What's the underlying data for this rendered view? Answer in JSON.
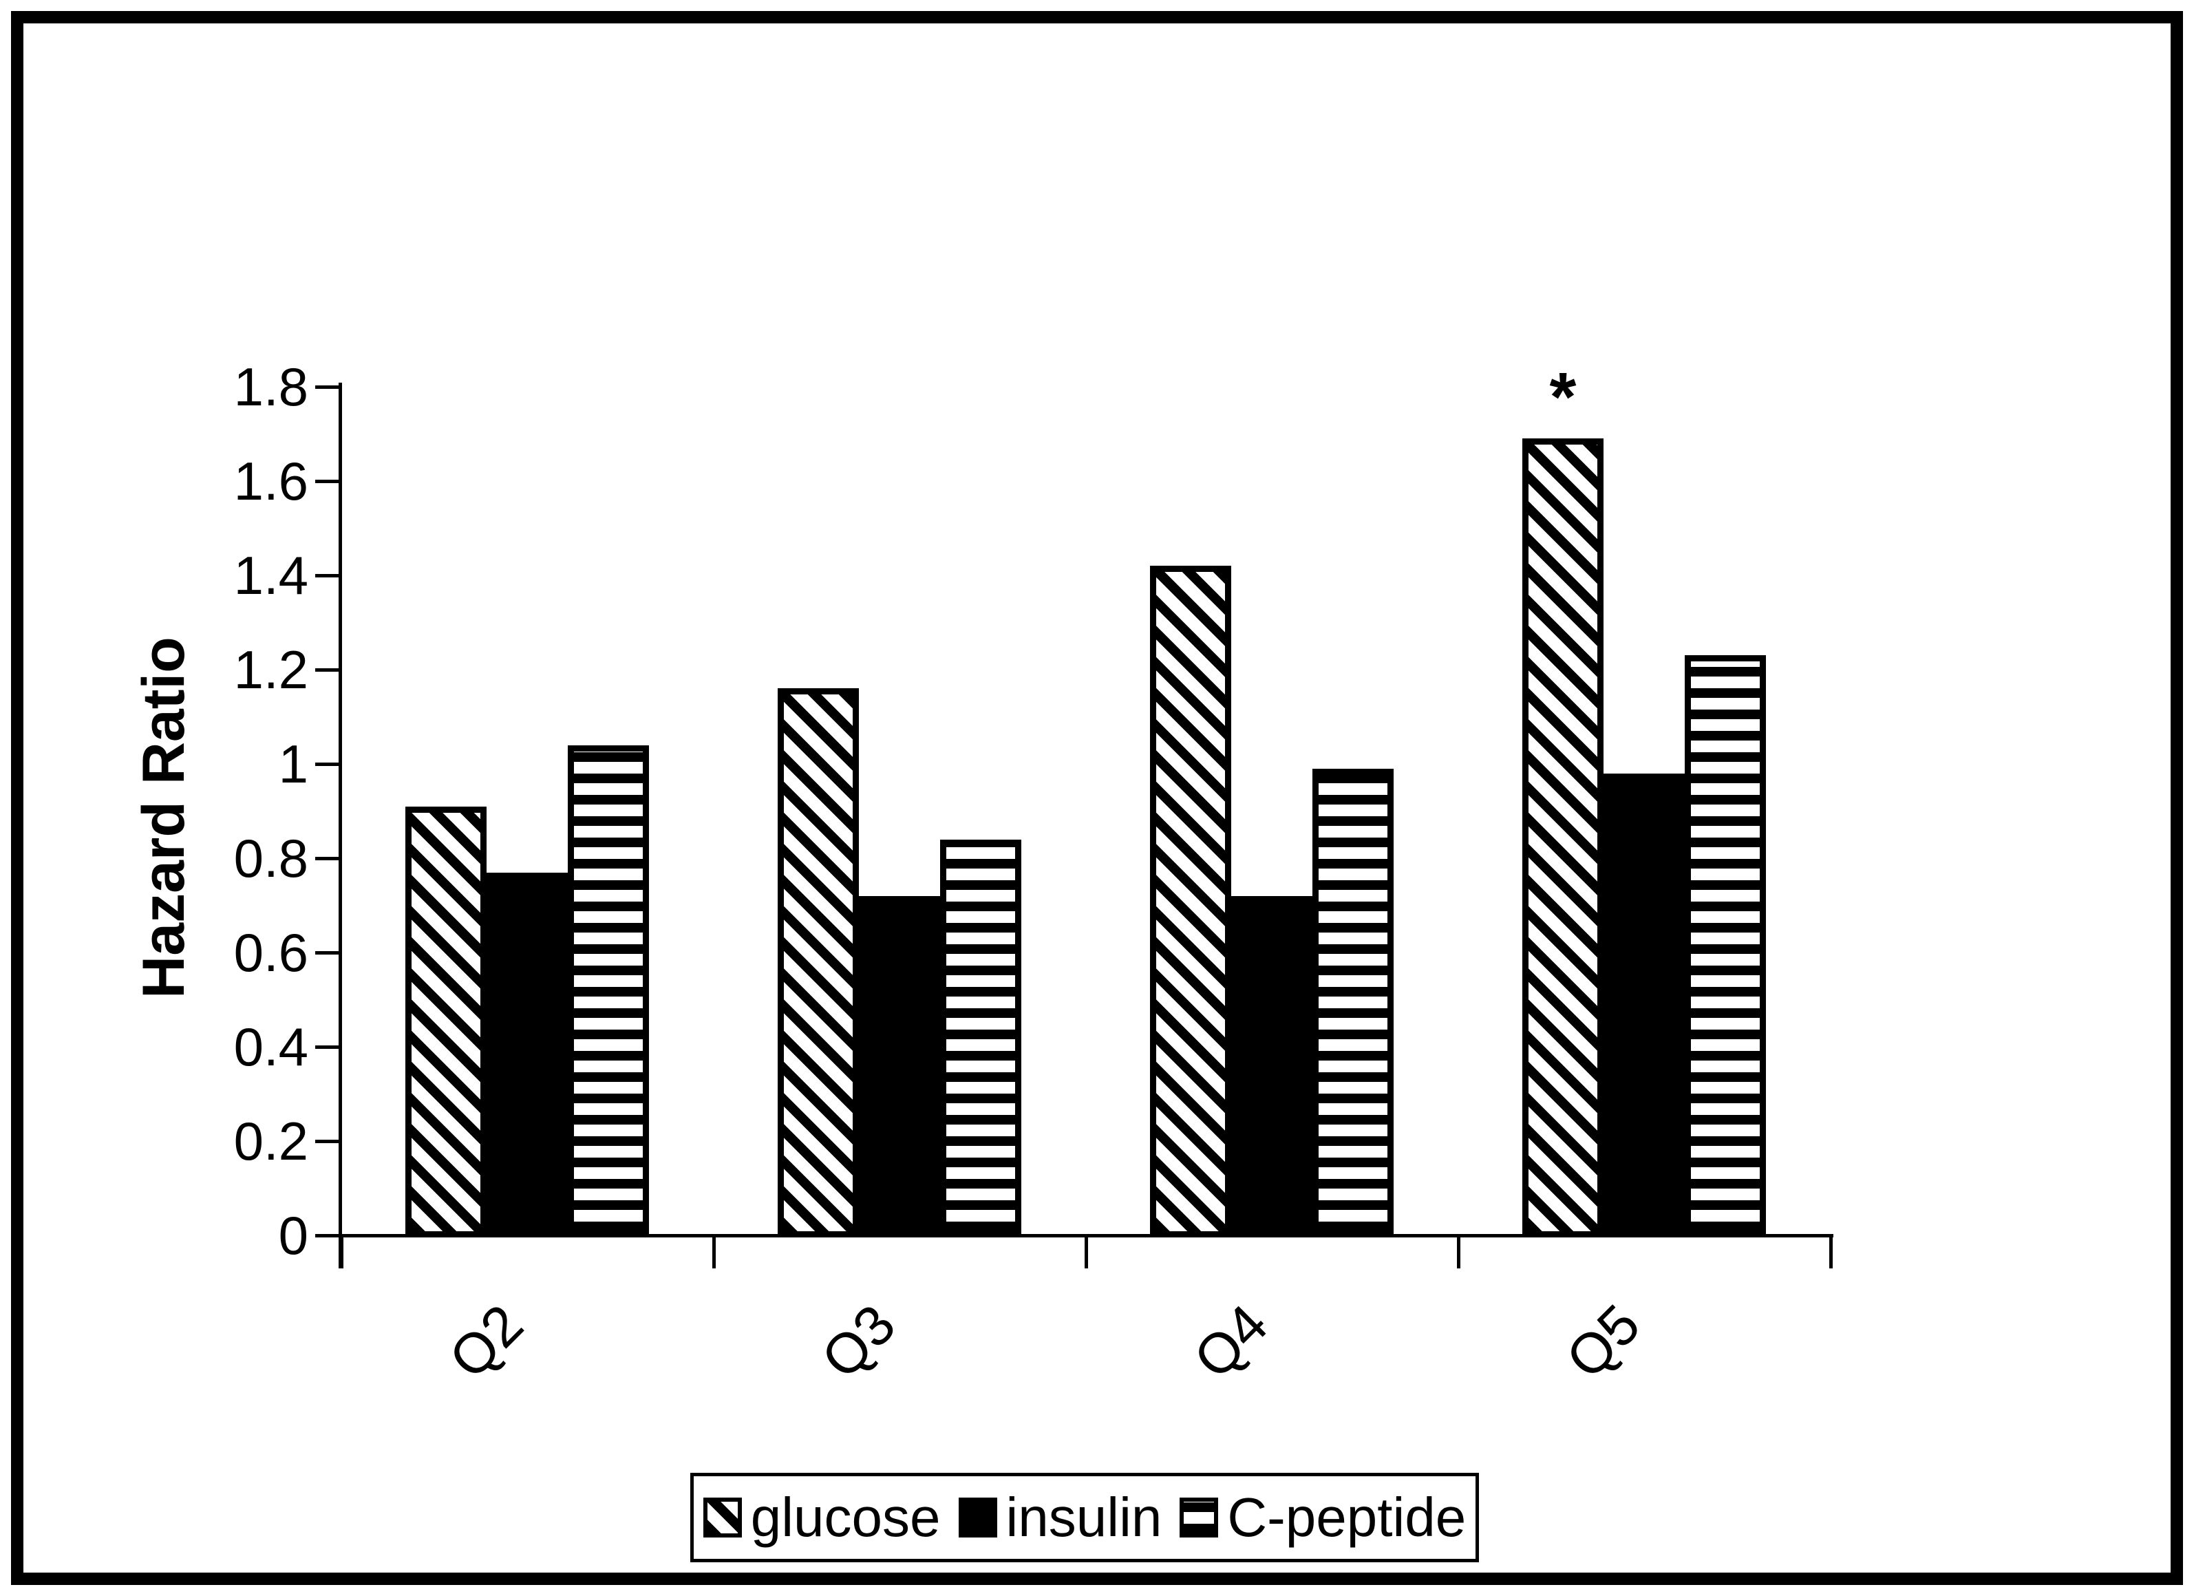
{
  "chart_data": {
    "type": "bar",
    "title": "",
    "xlabel": "",
    "ylabel": "Hazard Ratio",
    "categories": [
      "Q2",
      "Q3",
      "Q4",
      "Q5"
    ],
    "series": [
      {
        "name": "glucose",
        "pattern": "diagonal-hatch",
        "values": [
          0.91,
          1.16,
          1.42,
          1.69
        ]
      },
      {
        "name": "insulin",
        "pattern": "solid",
        "values": [
          0.77,
          0.72,
          0.72,
          0.98
        ]
      },
      {
        "name": "C-peptide",
        "pattern": "horizontal-stripes",
        "values": [
          1.04,
          0.84,
          0.99,
          1.23
        ]
      }
    ],
    "ylim": [
      0,
      1.8
    ],
    "ytick_step": 0.2,
    "yticks_labels": [
      "0",
      "0.2",
      "0.4",
      "0.6",
      "0.8",
      "1",
      "1.2",
      "1.4",
      "1.6",
      "1.8"
    ],
    "grid": false,
    "legend_position": "bottom-center",
    "bar_outline_color": "#000000",
    "background_color": "#ffffff",
    "annotations": [
      {
        "text": "*",
        "category": "Q5",
        "series": "glucose",
        "meaning": "significance-marker"
      }
    ]
  }
}
